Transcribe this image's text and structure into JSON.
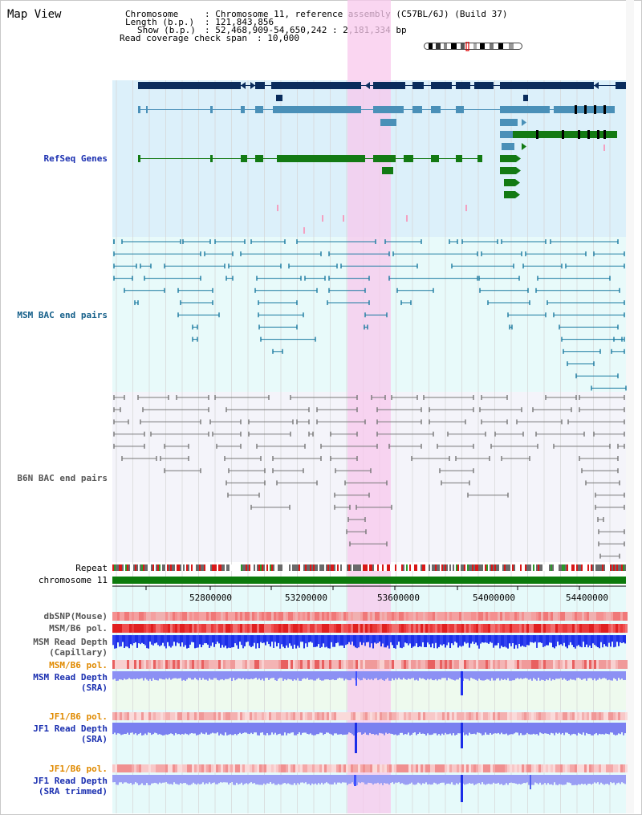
{
  "header": {
    "title": "Map View",
    "chromosome_key": "Chromosome",
    "chromosome_val": ": Chromosome 11, reference assembly (C57BL/6J) (Build 37)",
    "length_key": "Length (b.p.)",
    "length_val": ": 121,843,856",
    "show_key": "Show (b.p.)",
    "show_val": ": 52,468,909-54,650,242 : 2,181,334 bp",
    "coverage_key": "Read coverage check span",
    "coverage_val": ": 10,000"
  },
  "tracks": {
    "refseq": "RefSeq Genes",
    "msm_bac": "MSM BAC end pairs",
    "b6n_bac": "B6N BAC end pairs",
    "repeat": "Repeat",
    "chromosome": "chromosome 11",
    "dbsnp": "dbSNP(Mouse)",
    "msm_b6_pol": "MSM/B6 pol.",
    "msm_read_depth_cap_1": "MSM Read Depth",
    "msm_read_depth_cap_2": "(Capillary)",
    "msm_b6_pol_orange": "MSM/B6 pol.",
    "msm_read_depth_sra_1": "MSM Read Depth",
    "msm_read_depth_sra_2": "(SRA)",
    "jf1_b6_pol_1": "JF1/B6 pol.",
    "jf1_read_depth_sra_1": "JF1 Read Depth",
    "jf1_read_depth_sra_2": "(SRA)",
    "jf1_b6_pol_2": "JF1/B6 pol.",
    "jf1_read_depth_trim_1": "JF1 Read Depth",
    "jf1_read_depth_trim_2": "(SRA trimmed)"
  },
  "axis": {
    "ticks": [
      "52800000",
      "53200000",
      "53600000",
      "54000000",
      "54400000"
    ]
  },
  "colors": {
    "refseq_bg": "#dcf0fa",
    "msm_bg": "#e8fafa",
    "b6n_bg": "#f4f4fa",
    "highlight": "#f8c8ec",
    "gene_dark": "#0a2c5c",
    "gene_mid": "#4a90b8",
    "gene_green": "#137a13",
    "bac_msm": "#1a7aa0",
    "bac_b6n": "#777777",
    "chromosome": "#0c7a0c",
    "depth_blue": "#1c2ee8",
    "depth_light": "#8c90f4"
  }
}
